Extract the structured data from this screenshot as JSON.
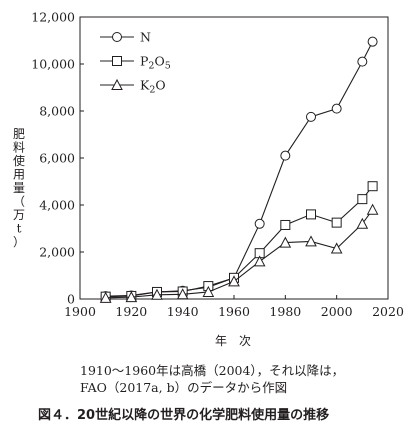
{
  "chart_data": {
    "type": "line",
    "xlabel": "年　次",
    "ylabel": "肥料使用量（万t）",
    "xlim": [
      1900,
      2020
    ],
    "ylim": [
      0,
      12000
    ],
    "x_ticks": [
      "1900",
      "1920",
      "1940",
      "1960",
      "1980",
      "2000",
      "2020"
    ],
    "y_ticks": [
      "0",
      "2,000",
      "4,000",
      "6,000",
      "8,000",
      "10,000",
      "12,000"
    ],
    "grid": false,
    "legend_position": "top-left",
    "x": [
      1910,
      1920,
      1930,
      1940,
      1950,
      1960,
      1970,
      1980,
      1990,
      2000,
      2010,
      2014
    ],
    "series": [
      {
        "name": "N",
        "marker": "circle",
        "values": [
          120,
          150,
          300,
          350,
          500,
          900,
          3200,
          6100,
          7750,
          8100,
          10100,
          10950
        ]
      },
      {
        "name": "P2O5",
        "marker": "square",
        "values": [
          100,
          130,
          300,
          320,
          550,
          900,
          1950,
          3150,
          3600,
          3250,
          4250,
          4800
        ]
      },
      {
        "name": "K2O",
        "marker": "triangle",
        "values": [
          50,
          80,
          180,
          200,
          300,
          750,
          1600,
          2400,
          2450,
          2150,
          3200,
          3800
        ]
      }
    ],
    "legend_labels": [
      {
        "base": "N",
        "sub": ""
      },
      {
        "base1": "P",
        "sub1": "2",
        "base2": "O",
        "sub2": "5"
      },
      {
        "base1": "K",
        "sub1": "2",
        "base2": "O",
        "sub2": ""
      }
    ]
  },
  "notes": {
    "line1": "1910～1960年は高橋（2004），それ以降は，",
    "line2": "FAO（2017a, b）のデータから作図"
  },
  "caption": "図４．20世紀以降の世界の化学肥料使用量の推移"
}
